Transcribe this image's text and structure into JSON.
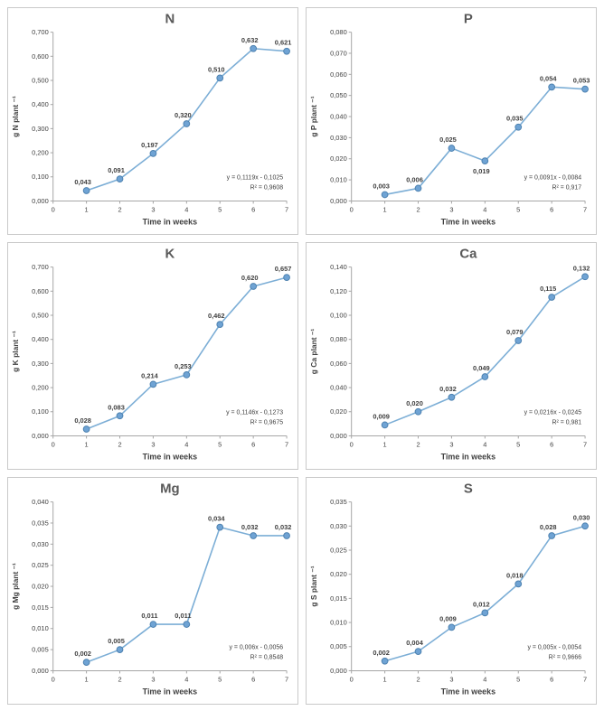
{
  "style": {
    "accent": "#6FA3D4",
    "marker_stroke": "#4E82B0",
    "line_color": "#7CAED6",
    "axis_color": "#A6A6A6",
    "title_color": "#595959",
    "label_color": "#404040",
    "panel_border": "#c9c9c9"
  },
  "chart_data": [
    {
      "type": "line",
      "title": "N",
      "xlabel": "Time in weeks",
      "ylabel": "g N plant ⁻¹",
      "x": [
        1,
        2,
        3,
        4,
        5,
        6,
        7
      ],
      "values": [
        0.043,
        0.091,
        0.197,
        0.32,
        0.51,
        0.632,
        0.621
      ],
      "point_labels": [
        "0,043",
        "0,091",
        "0,197",
        "0,320",
        "0,510",
        "0,632",
        "0,621"
      ],
      "xlim": [
        0,
        7
      ],
      "ylim": [
        0,
        0.7
      ],
      "ystep": 0.1,
      "ydecimals": 3,
      "xticks": [
        0,
        1,
        2,
        3,
        4,
        5,
        6,
        7
      ],
      "equation": "y = 0,1119x - 0,1025",
      "r2": "R² = 0,9608",
      "label_below": []
    },
    {
      "type": "line",
      "title": "P",
      "xlabel": "Time in weeks",
      "ylabel": "g P plant ⁻¹",
      "x": [
        1,
        2,
        3,
        4,
        5,
        6,
        7
      ],
      "values": [
        0.003,
        0.006,
        0.025,
        0.019,
        0.035,
        0.054,
        0.053
      ],
      "point_labels": [
        "0,003",
        "0,006",
        "0,025",
        "0,019",
        "0,035",
        "0,054",
        "0,053"
      ],
      "xlim": [
        0,
        7
      ],
      "ylim": [
        0,
        0.08
      ],
      "ystep": 0.01,
      "ydecimals": 3,
      "xticks": [
        0,
        1,
        2,
        3,
        4,
        5,
        6,
        7
      ],
      "equation": "y = 0,0091x - 0,0084",
      "r2": "R² = 0,917",
      "label_below": [
        3
      ]
    },
    {
      "type": "line",
      "title": "K",
      "xlabel": "Time in weeks",
      "ylabel": "g K plant ⁻¹",
      "x": [
        1,
        2,
        3,
        4,
        5,
        6,
        7
      ],
      "values": [
        0.028,
        0.083,
        0.214,
        0.253,
        0.462,
        0.62,
        0.657
      ],
      "point_labels": [
        "0,028",
        "0,083",
        "0,214",
        "0,253",
        "0,462",
        "0,620",
        "0,657"
      ],
      "xlim": [
        0,
        7
      ],
      "ylim": [
        0,
        0.7
      ],
      "ystep": 0.1,
      "ydecimals": 3,
      "xticks": [
        0,
        1,
        2,
        3,
        4,
        5,
        6,
        7
      ],
      "equation": "y = 0,1146x - 0,1273",
      "r2": "R² = 0,9675",
      "label_below": []
    },
    {
      "type": "line",
      "title": "Ca",
      "xlabel": "Time in weeks",
      "ylabel": "g Ca plant ⁻¹",
      "x": [
        1,
        2,
        3,
        4,
        5,
        6,
        7
      ],
      "values": [
        0.009,
        0.02,
        0.032,
        0.049,
        0.079,
        0.115,
        0.132
      ],
      "point_labels": [
        "0,009",
        "0,020",
        "0,032",
        "0,049",
        "0,079",
        "0,115",
        "0,132"
      ],
      "xlim": [
        0,
        7
      ],
      "ylim": [
        0,
        0.14
      ],
      "ystep": 0.02,
      "ydecimals": 3,
      "xticks": [
        0,
        1,
        2,
        3,
        4,
        5,
        6,
        7
      ],
      "equation": "y = 0,0216x - 0,0245",
      "r2": "R² = 0,981",
      "label_below": []
    },
    {
      "type": "line",
      "title": "Mg",
      "xlabel": "Time in weeks",
      "ylabel": "g Mg plant ⁻¹",
      "x": [
        1,
        2,
        3,
        4,
        5,
        6,
        7
      ],
      "values": [
        0.002,
        0.005,
        0.011,
        0.011,
        0.034,
        0.032,
        0.032
      ],
      "point_labels": [
        "0,002",
        "0,005",
        "0,011",
        "0,011",
        "0,034",
        "0,032",
        "0,032"
      ],
      "xlim": [
        0,
        7
      ],
      "ylim": [
        0,
        0.04
      ],
      "ystep": 0.005,
      "ydecimals": 3,
      "xticks": [
        0,
        1,
        2,
        3,
        4,
        5,
        6,
        7
      ],
      "equation": "y = 0,006x - 0,0056",
      "r2": "R² = 0,8548",
      "label_below": []
    },
    {
      "type": "line",
      "title": "S",
      "xlabel": "Time in weeks",
      "ylabel": "g S plant ⁻¹",
      "x": [
        1,
        2,
        3,
        4,
        5,
        6,
        7
      ],
      "values": [
        0.002,
        0.004,
        0.009,
        0.012,
        0.018,
        0.028,
        0.03
      ],
      "point_labels": [
        "0,002",
        "0,004",
        "0,009",
        "0,012",
        "0,018",
        "0,028",
        "0,030"
      ],
      "xlim": [
        0,
        7
      ],
      "ylim": [
        0,
        0.035
      ],
      "ystep": 0.005,
      "ydecimals": 3,
      "xticks": [
        0,
        1,
        2,
        3,
        4,
        5,
        6,
        7
      ],
      "equation": "y = 0,005x - 0,0054",
      "r2": "R² = 0,9666",
      "label_below": []
    }
  ]
}
